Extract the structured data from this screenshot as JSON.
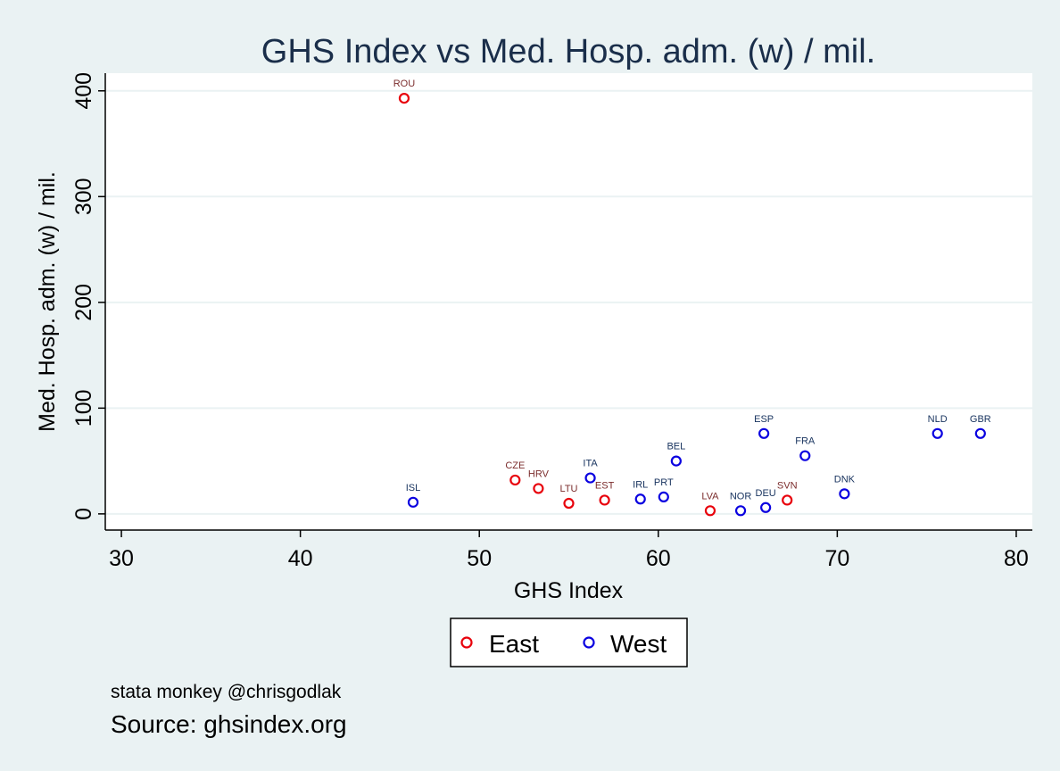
{
  "chart_data": {
    "type": "scatter",
    "title": "GHS Index vs Med. Hosp. adm. (w) / mil.",
    "xlabel": "GHS Index",
    "ylabel": "Med. Hosp. adm. (w) / mil.",
    "xlim": [
      29.1,
      80.9
    ],
    "ylim": [
      -15.3,
      416.7
    ],
    "xticks": [
      30,
      40,
      50,
      60,
      70,
      80
    ],
    "yticks": [
      0,
      100,
      200,
      300,
      400
    ],
    "grid": true,
    "legend_position": "bottom",
    "series": [
      {
        "name": "East",
        "color": "#e8000b",
        "label_color": "#7b2c2c",
        "points": [
          {
            "label": "ROU",
            "x": 45.8,
            "y": 393
          },
          {
            "label": "CZE",
            "x": 52.0,
            "y": 32
          },
          {
            "label": "HRV",
            "x": 53.3,
            "y": 24
          },
          {
            "label": "LTU",
            "x": 55.0,
            "y": 10
          },
          {
            "label": "EST",
            "x": 57.0,
            "y": 13
          },
          {
            "label": "LVA",
            "x": 62.9,
            "y": 3
          },
          {
            "label": "SVN",
            "x": 67.2,
            "y": 13
          }
        ]
      },
      {
        "name": "West",
        "color": "#0a00e0",
        "label_color": "#1a3560",
        "points": [
          {
            "label": "ISL",
            "x": 46.3,
            "y": 11
          },
          {
            "label": "ITA",
            "x": 56.2,
            "y": 34
          },
          {
            "label": "IRL",
            "x": 59.0,
            "y": 14
          },
          {
            "label": "PRT",
            "x": 60.3,
            "y": 16
          },
          {
            "label": "BEL",
            "x": 61.0,
            "y": 50
          },
          {
            "label": "NOR",
            "x": 64.6,
            "y": 3
          },
          {
            "label": "DEU",
            "x": 66.0,
            "y": 6
          },
          {
            "label": "ESP",
            "x": 65.9,
            "y": 76
          },
          {
            "label": "FRA",
            "x": 68.2,
            "y": 55
          },
          {
            "label": "DNK",
            "x": 70.4,
            "y": 19
          },
          {
            "label": "NLD",
            "x": 75.6,
            "y": 76
          },
          {
            "label": "GBR",
            "x": 78.0,
            "y": 76
          }
        ]
      }
    ]
  },
  "notes": {
    "credit": "stata monkey @chrisgodlak",
    "source": "Source: ghsindex.org"
  }
}
